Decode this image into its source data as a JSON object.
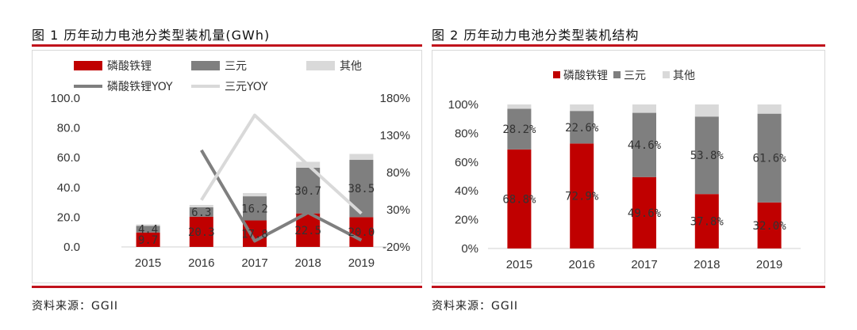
{
  "figure1": {
    "title": "图 1   历年动力电池分类型装机量(GWh)",
    "source": "资料来源：GGII",
    "chart_data": {
      "type": "bar",
      "stacked": true,
      "categories": [
        "2015",
        "2016",
        "2017",
        "2018",
        "2019"
      ],
      "series": [
        {
          "name": "磷酸铁锂",
          "color": "#c00000",
          "values": [
            9.7,
            20.3,
            17.8,
            22.5,
            20.0
          ],
          "labels": [
            "9.7",
            "20.3",
            "17.8",
            "22.5",
            "20.0"
          ]
        },
        {
          "name": "三元",
          "color": "#7f7f7f",
          "values": [
            4.4,
            6.3,
            16.2,
            30.7,
            38.5
          ],
          "labels": [
            "4.4",
            "6.3",
            "16.2",
            "30.7",
            "38.5"
          ]
        },
        {
          "name": "其他",
          "color": "#d9d9d9",
          "values": [
            1.0,
            1.6,
            2.2,
            4.0,
            4.0
          ]
        }
      ],
      "lines": [
        {
          "name": "磷酸铁锂YOY",
          "color": "#7f7f7f",
          "axis": "right",
          "points": [
            null,
            110,
            -12,
            26,
            -11
          ]
        },
        {
          "name": "三元YOY",
          "color": "#d9d9d9",
          "axis": "right",
          "points": [
            null,
            43,
            157,
            90,
            25
          ]
        }
      ],
      "ylim": [
        0,
        100
      ],
      "yticks": [
        "0.0",
        "20.0",
        "40.0",
        "60.0",
        "80.0",
        "100.0"
      ],
      "y2lim": [
        -20,
        180
      ],
      "y2ticks": [
        "-20%",
        "30%",
        "80%",
        "130%",
        "180%"
      ],
      "grid": false,
      "legend": "top"
    }
  },
  "figure2": {
    "title": "图 2   历年动力电池分类型装机结构",
    "source": "资料来源：GGII",
    "chart_data": {
      "type": "bar",
      "stacked": true,
      "percent": true,
      "categories": [
        "2015",
        "2016",
        "2017",
        "2018",
        "2019"
      ],
      "series": [
        {
          "name": "磷酸铁锂",
          "color": "#c00000",
          "values": [
            68.8,
            72.9,
            49.6,
            37.8,
            32.0
          ],
          "labels": [
            "68.8%",
            "72.9%",
            "49.6%",
            "37.8%",
            "32.0%"
          ]
        },
        {
          "name": "三元",
          "color": "#7f7f7f",
          "values": [
            28.2,
            22.6,
            44.6,
            53.8,
            61.6
          ],
          "labels": [
            "28.2%",
            "22.6%",
            "44.6%",
            "53.8%",
            "61.6%"
          ]
        },
        {
          "name": "其他",
          "color": "#d9d9d9",
          "values": [
            3.0,
            4.5,
            5.8,
            8.4,
            6.4
          ]
        }
      ],
      "ylim": [
        0,
        100
      ],
      "yticks": [
        "0%",
        "20%",
        "40%",
        "60%",
        "80%",
        "100%"
      ],
      "grid": false,
      "legend": "top"
    }
  }
}
